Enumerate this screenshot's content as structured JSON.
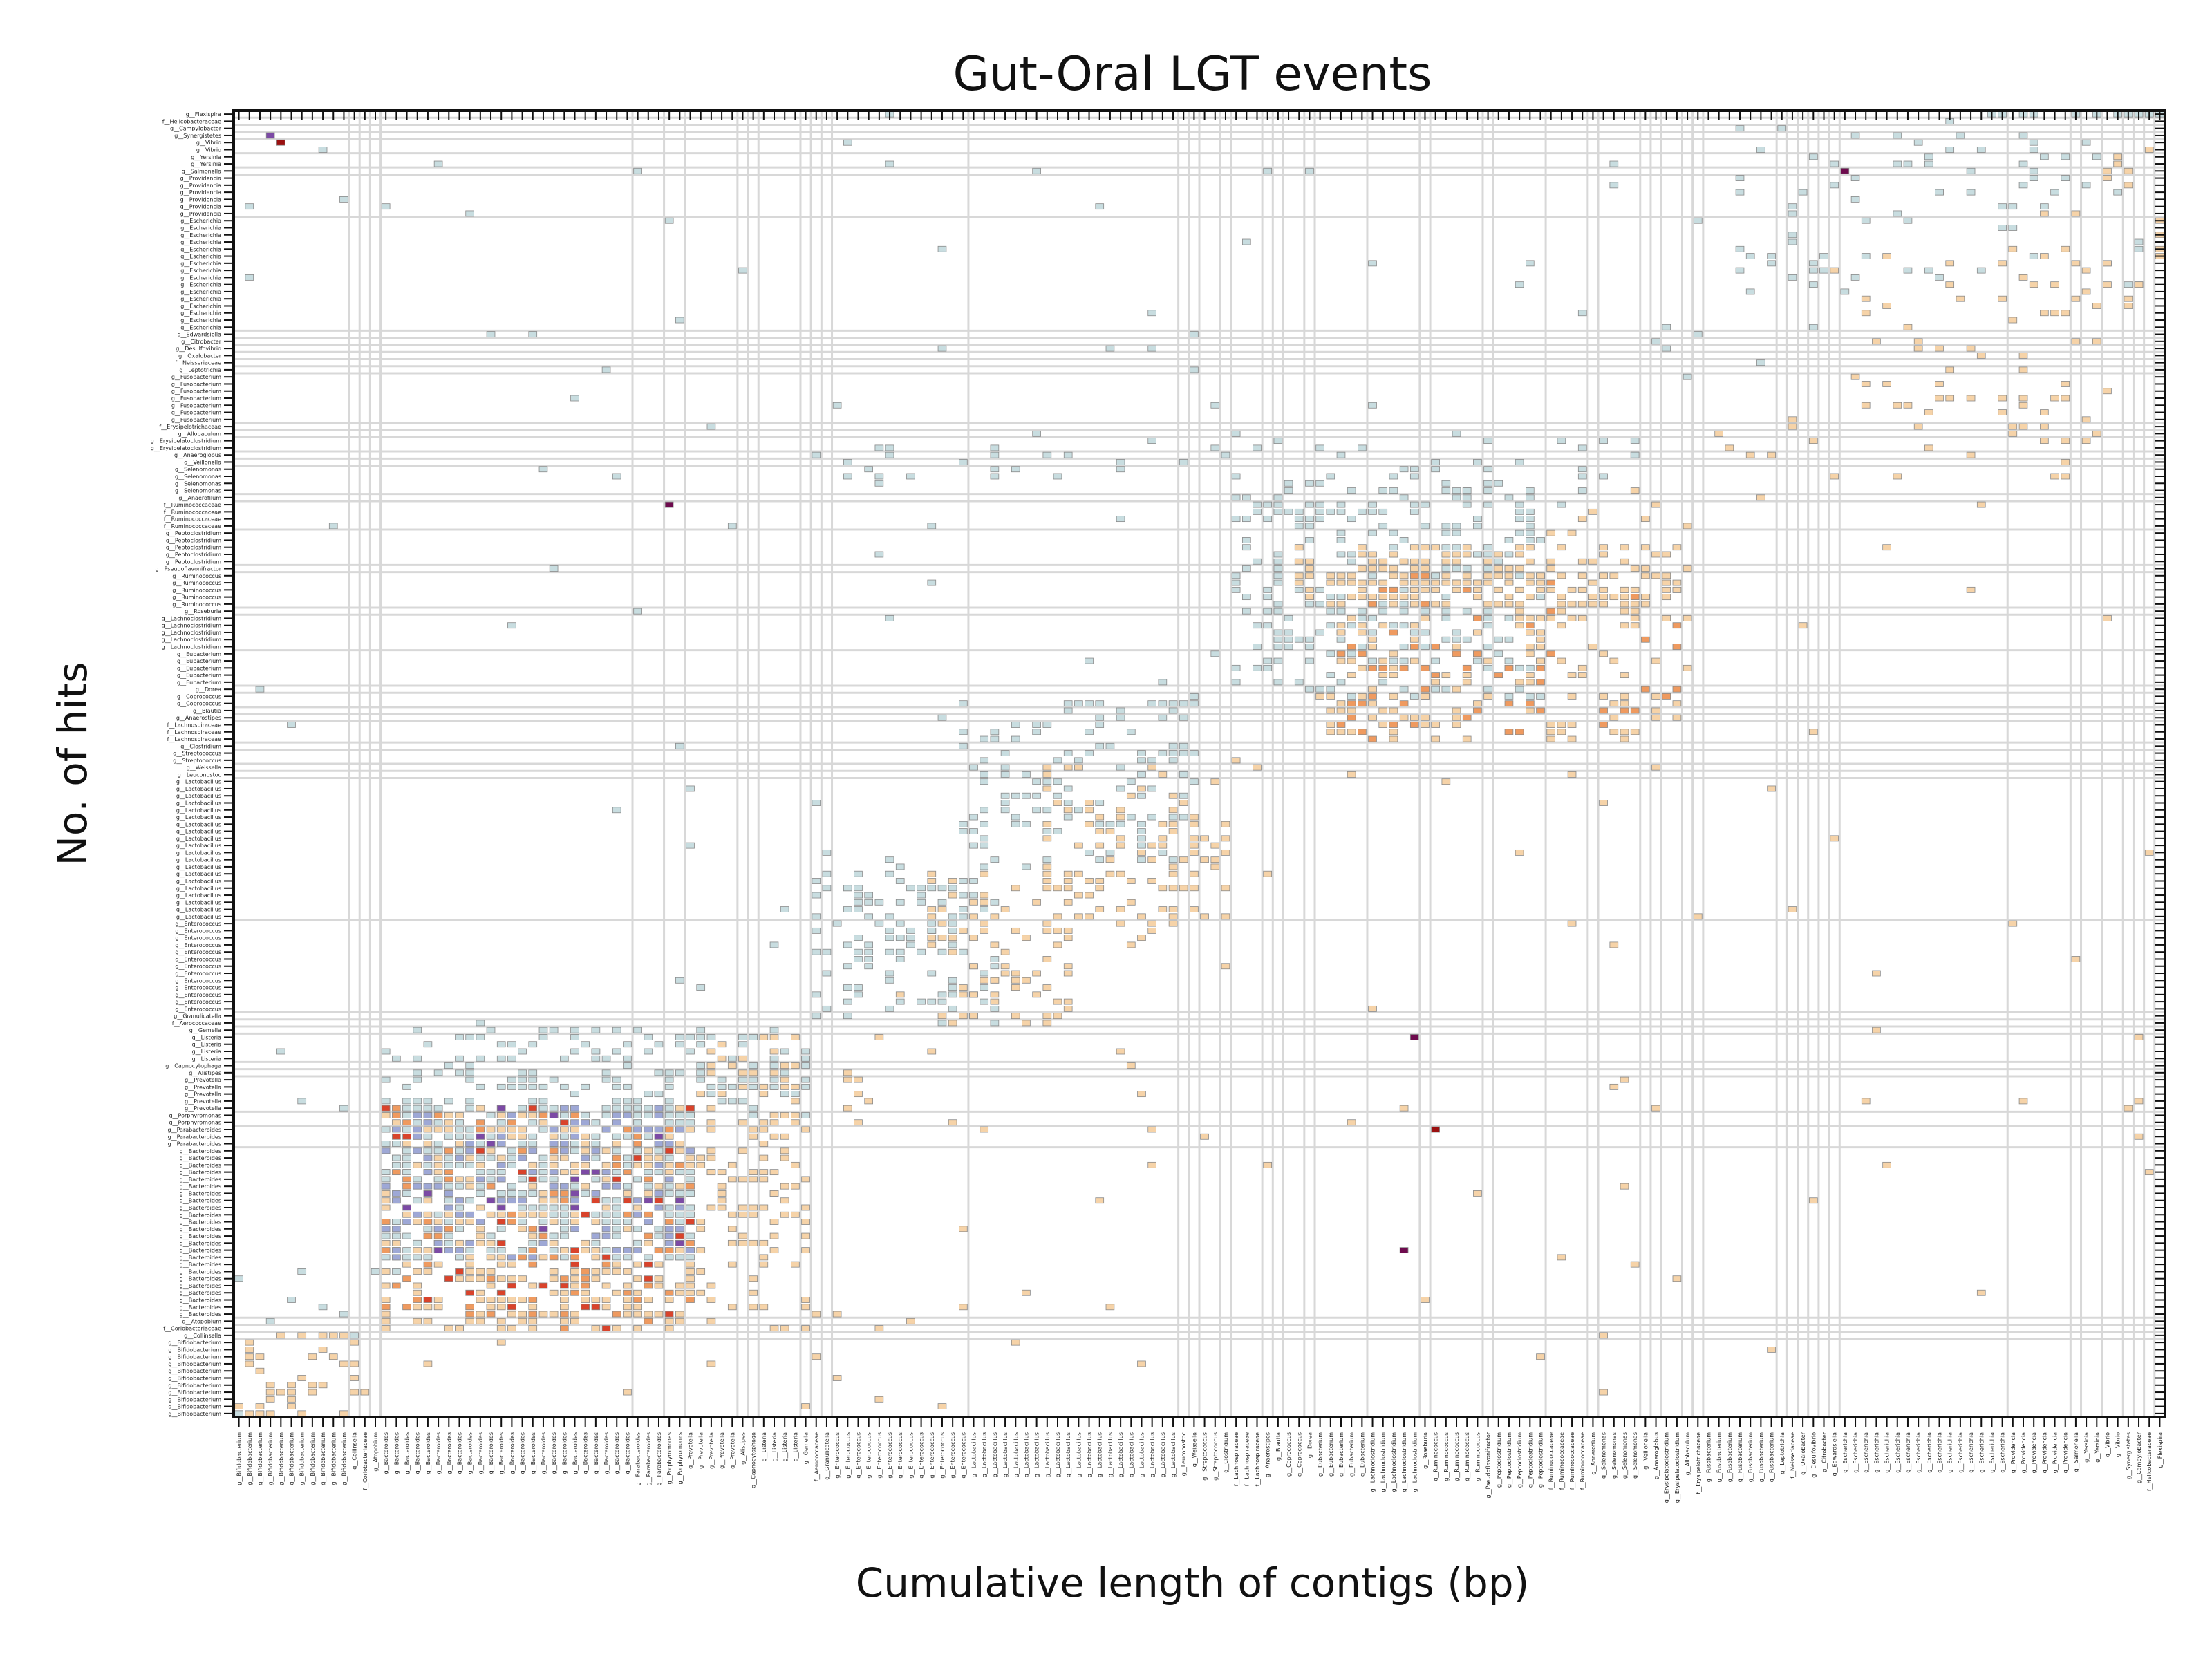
{
  "chart_data": {
    "type": "heatmap",
    "title": "Gut-Oral LGT events",
    "xlabel": "Cumulative length of contigs (bp)",
    "ylabel": "No. of hits",
    "grid": false,
    "colors": {
      "low_gut": "#c8dde0",
      "low_oral": "#f6d3a8",
      "mid_gut": "#9ea8d6",
      "mid_oral": "#ef9a5f",
      "high_gut": "#7c4aa5",
      "high_oral": "#d9432b",
      "max": "#6e0b4e",
      "max_oral": "#9b1010",
      "cell_edge": "#8a8a8a",
      "group_line": "#d8d8d8"
    },
    "x_groups": [
      {
        "name": "g__Bifidobacterium",
        "count": 11
      },
      {
        "name": "g__Collinsella",
        "count": 1
      },
      {
        "name": "f__Coriobacteriaceae",
        "count": 1
      },
      {
        "name": "g__Atopobium",
        "count": 1
      },
      {
        "name": "g__Bacteroides",
        "count": 24
      },
      {
        "name": "g__Parabacteroides",
        "count": 3
      },
      {
        "name": "g__Porphyromonas",
        "count": 2
      },
      {
        "name": "g__Prevotella",
        "count": 5
      },
      {
        "name": "g__Alistipes",
        "count": 1
      },
      {
        "name": "g__Capnocytophaga",
        "count": 1
      },
      {
        "name": "g__Listeria",
        "count": 4
      },
      {
        "name": "g__Gemella",
        "count": 1
      },
      {
        "name": "f__Aerococcaceae",
        "count": 1
      },
      {
        "name": "g__Granulicatella",
        "count": 1
      },
      {
        "name": "g__Enterococcus",
        "count": 13
      },
      {
        "name": "g__Lactobacillus",
        "count": 20
      },
      {
        "name": "g__Leuconostoc",
        "count": 1
      },
      {
        "name": "g__Weissella",
        "count": 1
      },
      {
        "name": "g__Streptococcus",
        "count": 2
      },
      {
        "name": "g__Clostridium",
        "count": 1
      },
      {
        "name": "f__Lachnospiraceae",
        "count": 3
      },
      {
        "name": "g__Anaerostipes",
        "count": 1
      },
      {
        "name": "g__Blautia",
        "count": 1
      },
      {
        "name": "g__Coprococcus",
        "count": 2
      },
      {
        "name": "g__Dorea",
        "count": 1
      },
      {
        "name": "g__Eubacterium",
        "count": 5
      },
      {
        "name": "g__Lachnoclostridium",
        "count": 5
      },
      {
        "name": "g__Roseburia",
        "count": 1
      },
      {
        "name": "g__Ruminococcus",
        "count": 5
      },
      {
        "name": "g__Pseudoflavonifractor",
        "count": 1
      },
      {
        "name": "g__Peptoclostridium",
        "count": 5
      },
      {
        "name": "f__Ruminococcaceae",
        "count": 4
      },
      {
        "name": "g__Anaerofilum",
        "count": 1
      },
      {
        "name": "g__Selenomonas",
        "count": 4
      },
      {
        "name": "g__Veillonella",
        "count": 1
      },
      {
        "name": "g__Anaeroglobus",
        "count": 1
      },
      {
        "name": "g__Erysipelatoclostridium",
        "count": 2
      },
      {
        "name": "g__Allobaculum",
        "count": 1
      },
      {
        "name": "f__Erysipelotrichaceae",
        "count": 1
      },
      {
        "name": "g__Fusobacterium",
        "count": 7
      },
      {
        "name": "g__Leptotrichia",
        "count": 1
      },
      {
        "name": "f__Neisseriaceae",
        "count": 1
      },
      {
        "name": "g__Oxalobacter",
        "count": 1
      },
      {
        "name": "g__Desulfovibrio",
        "count": 1
      },
      {
        "name": "g__Citrobacter",
        "count": 1
      },
      {
        "name": "g__Edwardsiella",
        "count": 1
      },
      {
        "name": "g__Escherichia",
        "count": 16
      },
      {
        "name": "g__Providencia",
        "count": 6
      },
      {
        "name": "g__Salmonella",
        "count": 1
      },
      {
        "name": "g__Yersinia",
        "count": 2
      },
      {
        "name": "g__Vibrio",
        "count": 2
      },
      {
        "name": "g__Synergistetes",
        "count": 1
      },
      {
        "name": "g__Campylobacter",
        "count": 1
      },
      {
        "name": "f__Helicobacteraceae",
        "count": 1
      },
      {
        "name": "g__Flexispira",
        "count": 1
      }
    ],
    "blocks": [
      {
        "r0": 0.0,
        "r1": 0.01,
        "c0": 0.0,
        "c1": 0.02,
        "density": 0.9,
        "tone": "max",
        "seed": 1
      },
      {
        "r0": 0.005,
        "r1": 0.07,
        "c0": 0.0,
        "c1": 0.07,
        "density": 0.18,
        "tone": "oral",
        "seed": 2
      },
      {
        "r0": 0.07,
        "r1": 0.24,
        "c0": 0.08,
        "c1": 0.24,
        "density": 0.55,
        "tone": "oralhot",
        "seed": 3
      },
      {
        "r0": 0.12,
        "r1": 0.24,
        "c0": 0.08,
        "c1": 0.24,
        "density": 0.45,
        "tone": "gutmid",
        "seed": 4
      },
      {
        "r0": 0.07,
        "r1": 0.3,
        "c0": 0.24,
        "c1": 0.3,
        "density": 0.25,
        "tone": "oral",
        "seed": 5
      },
      {
        "r0": 0.23,
        "r1": 0.3,
        "c0": 0.08,
        "c1": 0.3,
        "density": 0.22,
        "tone": "gut",
        "seed": 6
      },
      {
        "r0": 0.3,
        "r1": 0.42,
        "c0": 0.3,
        "c1": 0.4,
        "density": 0.22,
        "tone": "gut",
        "seed": 7
      },
      {
        "r0": 0.3,
        "r1": 0.42,
        "c0": 0.36,
        "c1": 0.44,
        "density": 0.25,
        "tone": "oral",
        "seed": 8
      },
      {
        "r0": 0.42,
        "r1": 0.55,
        "c0": 0.38,
        "c1": 0.5,
        "density": 0.2,
        "tone": "gut",
        "seed": 9
      },
      {
        "r0": 0.38,
        "r1": 0.5,
        "c0": 0.42,
        "c1": 0.52,
        "density": 0.22,
        "tone": "oral",
        "seed": 10
      },
      {
        "r0": 0.55,
        "r1": 0.72,
        "c0": 0.52,
        "c1": 0.68,
        "density": 0.28,
        "tone": "gut",
        "seed": 11
      },
      {
        "r0": 0.52,
        "r1": 0.65,
        "c0": 0.57,
        "c1": 0.76,
        "density": 0.3,
        "tone": "oralmid",
        "seed": 12
      },
      {
        "r0": 0.62,
        "r1": 0.67,
        "c0": 0.55,
        "c1": 0.75,
        "density": 0.35,
        "tone": "oral",
        "seed": 13
      },
      {
        "r0": 0.72,
        "r1": 0.76,
        "c0": 0.3,
        "c1": 0.76,
        "density": 0.08,
        "tone": "gut",
        "seed": 14
      },
      {
        "r0": 0.86,
        "r1": 0.99,
        "c0": 0.78,
        "c1": 0.99,
        "density": 0.06,
        "tone": "gut",
        "seed": 15
      },
      {
        "r0": 0.72,
        "r1": 0.9,
        "c0": 0.83,
        "c1": 0.99,
        "density": 0.07,
        "tone": "oral",
        "seed": 16
      }
    ],
    "scattered": {
      "count": 420,
      "seed": 99
    },
    "max_cells": [
      {
        "row": 0.975,
        "col": 0.025,
        "tone": "max_oral"
      },
      {
        "row": 0.982,
        "col": 0.02,
        "tone": "high_gut"
      },
      {
        "row": 0.7,
        "col": 0.227,
        "tone": "max"
      },
      {
        "row": 0.29,
        "col": 0.61,
        "tone": "max"
      },
      {
        "row": 0.22,
        "col": 0.62,
        "tone": "max_oral"
      },
      {
        "row": 0.13,
        "col": 0.605,
        "tone": "max"
      },
      {
        "row": 0.955,
        "col": 0.835,
        "tone": "max"
      }
    ]
  }
}
